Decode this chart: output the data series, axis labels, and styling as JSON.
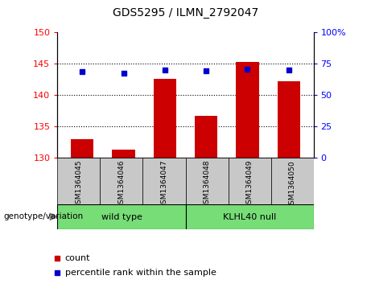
{
  "title": "GDS5295 / ILMN_2792047",
  "samples": [
    "GSM1364045",
    "GSM1364046",
    "GSM1364047",
    "GSM1364048",
    "GSM1364049",
    "GSM1364050"
  ],
  "counts": [
    133.0,
    131.3,
    142.5,
    136.7,
    145.2,
    142.2
  ],
  "percentile_ranks": [
    68.5,
    67.5,
    70.0,
    69.0,
    70.5,
    70.0
  ],
  "ylim_left": [
    130,
    150
  ],
  "ylim_right": [
    0,
    100
  ],
  "yticks_left": [
    130,
    135,
    140,
    145,
    150
  ],
  "yticks_right": [
    0,
    25,
    50,
    75,
    100
  ],
  "bar_color": "#cc0000",
  "dot_color": "#0000cc",
  "group_label": "genotype/variation",
  "groups": [
    {
      "label": "wild type",
      "start": 0,
      "end": 3,
      "color": "#77dd77"
    },
    {
      "label": "KLHL40 null",
      "start": 3,
      "end": 6,
      "color": "#77dd77"
    }
  ],
  "legend_count_label": "count",
  "legend_pct_label": "percentile rank within the sample",
  "bg_color": "#c8c8c8",
  "plot_bg": "#ffffff"
}
